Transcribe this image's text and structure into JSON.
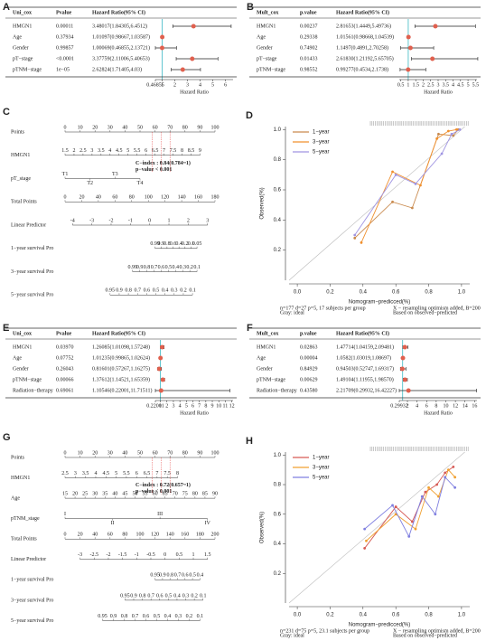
{
  "chart_data": [
    {
      "type": "forest",
      "panel": "A",
      "columns": [
        "Uni_cox",
        "Pvalue",
        "Hazard Ratio(95% CI)"
      ],
      "rows": [
        {
          "name": "HMGN1",
          "p": "0.00011",
          "hr_label": "3.48017(1.84305,6.4512)",
          "hr": 3.48017,
          "lower": 1.84305,
          "upper": 6.4512
        },
        {
          "name": "Age",
          "p": "0.37934",
          "hr_label": "1.01097(0.98667,1.03587)",
          "hr": 1.01097,
          "lower": 0.98667,
          "upper": 1.03587
        },
        {
          "name": "Gender",
          "p": "0.99857",
          "hr_label": "1.00069(0.46855,2.13721)",
          "hr": 1.00069,
          "lower": 0.46855,
          "upper": 2.13721
        },
        {
          "name": "pT−stage",
          "p": "<0.0001",
          "hr_label": "3.37759(2.11006,5.40653)",
          "hr": 3.37759,
          "lower": 2.11006,
          "upper": 5.40653
        },
        {
          "name": "pTNM−stage",
          "p": "1e−05",
          "hr_label": "2.62824(1.71405,4.03)",
          "hr": 2.62824,
          "lower": 1.71405,
          "upper": 4.03
        }
      ],
      "xlabel": "Hazard Ratio",
      "xlim": [
        0.46855,
        6.6
      ],
      "xticks": [
        0.46855,
        1,
        2,
        3,
        4,
        5,
        6
      ],
      "ref_line": 1,
      "color": "#e0604e",
      "ref_color": "#3cb9c4"
    },
    {
      "type": "forest",
      "panel": "B",
      "columns": [
        "Mult_cox",
        "p.value",
        "Hazard Ratio(95% CI)"
      ],
      "rows": [
        {
          "name": "HMGN1",
          "p": "0.00237",
          "hr_label": "2.81653(1.4449,5.49736)",
          "hr": 2.81653,
          "lower": 1.4449,
          "upper": 5.49736
        },
        {
          "name": "Age",
          "p": "0.29338",
          "hr_label": "1.01561(0.98668,1.04539)",
          "hr": 1.01561,
          "lower": 0.98668,
          "upper": 1.04539
        },
        {
          "name": "Gender",
          "p": "0.74902",
          "hr_label": "1.1497(0.4891,2.70258)",
          "hr": 1.1497,
          "lower": 0.4891,
          "upper": 2.70258
        },
        {
          "name": "pT−stage",
          "p": "0.01433",
          "hr_label": "2.61830(1.21192,5.65705)",
          "hr": 2.6183,
          "lower": 1.21192,
          "upper": 5.65705
        },
        {
          "name": "pTNM−stage",
          "p": "0.98552",
          "hr_label": "0.99277(0.4534,2.1738)",
          "hr": 0.99277,
          "lower": 0.4534,
          "upper": 2.1738
        }
      ],
      "xlabel": "Hazard Ratio",
      "xlim": [
        0.4,
        5.6
      ],
      "xticks": [
        0.5,
        1,
        1.5,
        2,
        2.5,
        3,
        3.5,
        4,
        4.5,
        5,
        5.5
      ],
      "ref_line": 1,
      "color": "#e0604e",
      "ref_color": "#3cb9c4"
    },
    {
      "type": "nomogram",
      "panel": "C",
      "rows": [
        {
          "label": "Points",
          "range": [
            0,
            100
          ],
          "ticks": [
            0,
            10,
            20,
            30,
            40,
            50,
            60,
            70,
            80,
            90,
            100
          ]
        },
        {
          "label": "HMGN1",
          "range": [
            0,
            90
          ],
          "ticks": [
            1.5,
            2,
            2.5,
            3,
            3.5,
            4,
            4.5,
            5,
            5.5,
            6,
            6.5,
            7,
            7.5,
            8,
            8.5,
            9
          ]
        },
        {
          "label": "pT_stage",
          "range": [
            0,
            50
          ],
          "ticks": [
            "T1",
            "T2",
            "T3",
            "T4"
          ]
        },
        {
          "label": "Total Points",
          "range": [
            0,
            100
          ],
          "ticks": [
            0,
            20,
            40,
            60,
            80,
            100,
            120,
            140,
            160,
            180
          ]
        },
        {
          "label": "Linear Predictor",
          "range": [
            5,
            95
          ],
          "ticks": [
            -4,
            -3,
            -2,
            -1,
            0,
            1,
            2,
            3
          ]
        },
        {
          "label": "1−year survival Pro",
          "range": [
            60,
            88
          ],
          "ticks": [
            0.99,
            0.9,
            0.8,
            0.6,
            0.4,
            0.2,
            0.1,
            0.05
          ]
        },
        {
          "label": "3−year survival Pro",
          "range": [
            45,
            88
          ],
          "ticks": [
            0.99,
            0.9,
            0.8,
            0.7,
            0.6,
            0.5,
            0.4,
            0.3,
            0.2,
            0.1
          ]
        },
        {
          "label": "5−year survival Pro",
          "range": [
            30,
            85
          ],
          "ticks": [
            0.95,
            0.9,
            0.8,
            0.7,
            0.6,
            0.5,
            0.4,
            0.3,
            0.2,
            0.1
          ]
        }
      ],
      "annotations": [
        "C−index : 0.84(0.784~1)",
        "p−value < 0.001"
      ],
      "annotation_color": "#e02020"
    },
    {
      "type": "calibration",
      "panel": "D",
      "xlabel": "Nomogram−predicced(%)",
      "ylabel": "Observed(%)",
      "xlim": [
        -0.05,
        1.05
      ],
      "ylim": [
        0,
        1.02
      ],
      "xticks": [
        {
          "value": 0,
          "label": "0.0"
        },
        {
          "value": 0.2,
          "label": "0.2"
        },
        {
          "value": 0.4,
          "label": "0.4"
        },
        {
          "value": 0.6,
          "label": "0.6"
        },
        {
          "value": 0.8,
          "label": "0.8"
        },
        {
          "value": 1,
          "label": "1.0"
        }
      ],
      "yticks": [
        {
          "value": 0.2,
          "label": "0.2"
        },
        {
          "value": 0.4,
          "label": "0.4"
        },
        {
          "value": 0.6,
          "label": "0.6"
        },
        {
          "value": 0.8,
          "label": "0.8"
        },
        {
          "value": 1,
          "label": "1.0"
        }
      ],
      "series": [
        {
          "name": "1−year",
          "color": "#c98a4e",
          "x": [
            0.35,
            0.58,
            0.7,
            0.86,
            0.95,
            0.98
          ],
          "values": [
            0.28,
            0.52,
            0.48,
            0.97,
            0.96,
            1.0
          ]
        },
        {
          "name": "3−year",
          "color": "#f0902e",
          "x": [
            0.39,
            0.58,
            0.75,
            0.85,
            0.92,
            0.97
          ],
          "values": [
            0.25,
            0.72,
            0.63,
            0.94,
            0.99,
            1.0
          ]
        },
        {
          "name": "5−year",
          "color": "#a095e2",
          "x": [
            0.35,
            0.6,
            0.72,
            0.88,
            0.94,
            0.99
          ],
          "values": [
            0.3,
            0.7,
            0.64,
            0.84,
            0.97,
            1.0
          ]
        }
      ],
      "footnotes": [
        "n=177 d=27 p=5, 17 subjects per group",
        "Gray: ideal",
        "X − resampling optimism added, B=200",
        "Based on observed−predicted"
      ]
    },
    {
      "type": "forest",
      "panel": "E",
      "columns": [
        "Uni_cox",
        "Pvalue",
        "Hazard Ratio(95% CI)"
      ],
      "rows": [
        {
          "name": "HMGN1",
          "p": "0.03970",
          "hr_label": "1.26085(1.01098,1.57248)",
          "hr": 1.26085,
          "lower": 1.01098,
          "upper": 1.57248
        },
        {
          "name": "Age",
          "p": "0.07752",
          "hr_label": "1.01235(0.99865,1.02624)",
          "hr": 1.01235,
          "lower": 0.99865,
          "upper": 1.02624
        },
        {
          "name": "Gender",
          "p": "0.26043",
          "hr_label": "0.81601(0.57267,1.16275)",
          "hr": 0.81601,
          "lower": 0.57267,
          "upper": 1.16275
        },
        {
          "name": "pTNM−stage",
          "p": "0.00066",
          "hr_label": "1.37612(1.14521,1.65359)",
          "hr": 1.37612,
          "lower": 1.14521,
          "upper": 1.65359
        },
        {
          "name": "Radiation−therapy",
          "p": "0.69061",
          "hr_label": "1.10546(0.22001,11.71511)",
          "hr": 1.10546,
          "lower": 0.22001,
          "upper": 11.71511
        }
      ],
      "xlabel": "Hazard Ratio",
      "xlim": [
        0.22001,
        12.2
      ],
      "xticks": [
        0.22001,
        1,
        2,
        3,
        4,
        5,
        6,
        7,
        8,
        9,
        10,
        11,
        12
      ],
      "ref_line": 1,
      "color": "#e0604e",
      "ref_color": "#3cb9c4"
    },
    {
      "type": "forest",
      "panel": "F",
      "columns": [
        "Mult_cox",
        "p.value",
        "Hazard Ratio(95% CI)"
      ],
      "rows": [
        {
          "name": "HMGN1",
          "p": "0.02863",
          "hr_label": "1.47714(1.04159,2.09481)",
          "hr": 1.47714,
          "lower": 1.04159,
          "upper": 2.09481
        },
        {
          "name": "Age",
          "p": "0.00004",
          "hr_label": "1.0582(1.03019,1.08697)",
          "hr": 1.0582,
          "lower": 1.03019,
          "upper": 1.08697
        },
        {
          "name": "Gender",
          "p": "0.84929",
          "hr_label": "0.94503(0.52747,1.69317)",
          "hr": 0.94503,
          "lower": 0.52747,
          "upper": 1.69317
        },
        {
          "name": "pTNM−stage",
          "p": "0.00629",
          "hr_label": "1.49104(1.11955,1.98570)",
          "hr": 1.49104,
          "lower": 1.11955,
          "upper": 1.9857
        },
        {
          "name": "Radiation−therapy",
          "p": "0.43580",
          "hr_label": "2.21709(0.29932,16.42227)",
          "hr": 2.21709,
          "lower": 0.29932,
          "upper": 16.42227
        }
      ],
      "xlabel": "Hazard Ratio",
      "xlim": [
        0.29932,
        16.5
      ],
      "xticks": [
        0.29932,
        2,
        4,
        6,
        8,
        10,
        12,
        14,
        16
      ],
      "ref_line": 1,
      "color": "#e0604e",
      "ref_color": "#3cb9c4"
    },
    {
      "type": "nomogram",
      "panel": "G",
      "rows": [
        {
          "label": "Points",
          "range": [
            0,
            100
          ],
          "ticks": [
            0,
            10,
            20,
            30,
            40,
            50,
            60,
            70,
            80,
            90,
            100
          ]
        },
        {
          "label": "HMGN1",
          "range": [
            0,
            75
          ],
          "ticks": [
            2.5,
            3,
            3.5,
            4,
            4.5,
            5,
            5.5,
            6,
            6.5,
            7,
            7.5,
            8
          ]
        },
        {
          "label": "Age",
          "range": [
            0,
            100
          ],
          "ticks": [
            15,
            20,
            25,
            30,
            35,
            40,
            45,
            50,
            55,
            60,
            65,
            70,
            75,
            80,
            85,
            90
          ]
        },
        {
          "label": "pTNM_stage",
          "range": [
            0,
            95
          ],
          "ticks": [
            "I",
            "II",
            "III",
            "IV"
          ]
        },
        {
          "label": "Total Points",
          "range": [
            0,
            100
          ],
          "ticks": [
            0,
            20,
            40,
            60,
            80,
            100,
            120,
            140,
            160,
            180,
            200
          ]
        },
        {
          "label": "Linear Predictor",
          "range": [
            10,
            95
          ],
          "ticks": [
            -3,
            -2.5,
            -2,
            -1.5,
            -1,
            -0.5,
            0,
            0.5,
            1,
            1.5
          ]
        },
        {
          "label": "1−year survival Pro",
          "range": [
            60,
            90
          ],
          "ticks": [
            0.95,
            0.9,
            0.8,
            0.7,
            0.6,
            0.5,
            0.4
          ]
        },
        {
          "label": "3−year survival Pro",
          "range": [
            40,
            92
          ],
          "ticks": [
            0.95,
            0.9,
            0.8,
            0.7,
            0.6,
            0.5,
            0.4,
            0.3,
            0.2,
            0.1
          ]
        },
        {
          "label": "5−year survival Pro",
          "range": [
            25,
            90
          ],
          "ticks": [
            0.95,
            0.9,
            0.8,
            0.7,
            0.6,
            0.5,
            0.4,
            0.3,
            0.2,
            0.1
          ]
        }
      ],
      "annotations": [
        "C−index : 0.72(0.657~1)",
        "p−value < 0.001"
      ],
      "annotation_color": "#e02020"
    },
    {
      "type": "calibration",
      "panel": "H",
      "xlabel": "Nomogram−predicced(%)",
      "ylabel": "Observed(%)",
      "xlim": [
        -0.05,
        1.05
      ],
      "ylim": [
        0,
        1.02
      ],
      "xticks": [
        {
          "value": 0,
          "label": "0.0"
        },
        {
          "value": 0.2,
          "label": "0.2"
        },
        {
          "value": 0.4,
          "label": "0.4"
        },
        {
          "value": 0.6,
          "label": "0.6"
        },
        {
          "value": 0.8,
          "label": "0.8"
        },
        {
          "value": 1,
          "label": "1.0"
        }
      ],
      "yticks": [
        {
          "value": 0.2,
          "label": "0.2"
        },
        {
          "value": 0.4,
          "label": "0.4"
        },
        {
          "value": 0.6,
          "label": "0.6"
        },
        {
          "value": 0.8,
          "label": "0.8"
        },
        {
          "value": 1,
          "label": "1.0"
        }
      ],
      "series": [
        {
          "name": "1−year",
          "color": "#d65a55",
          "x": [
            0.41,
            0.6,
            0.7,
            0.78,
            0.85,
            0.9,
            0.95
          ],
          "values": [
            0.37,
            0.65,
            0.55,
            0.75,
            0.8,
            0.88,
            0.92
          ]
        },
        {
          "name": "3−year",
          "color": "#f0a030",
          "x": [
            0.42,
            0.6,
            0.72,
            0.8,
            0.86,
            0.92,
            0.96
          ],
          "values": [
            0.42,
            0.6,
            0.5,
            0.78,
            0.72,
            0.9,
            0.85
          ]
        },
        {
          "name": "5−year",
          "color": "#7f7fe0",
          "x": [
            0.41,
            0.58,
            0.68,
            0.76,
            0.84,
            0.9,
            0.96
          ],
          "values": [
            0.5,
            0.66,
            0.45,
            0.72,
            0.6,
            0.85,
            0.78
          ]
        }
      ],
      "footnotes": [
        "n=231 d=75 p=5, 23.1 subjects per group",
        "Gray: ideal",
        "X − resampling optimism added, B=200",
        "Based on observed−predicted"
      ]
    }
  ]
}
